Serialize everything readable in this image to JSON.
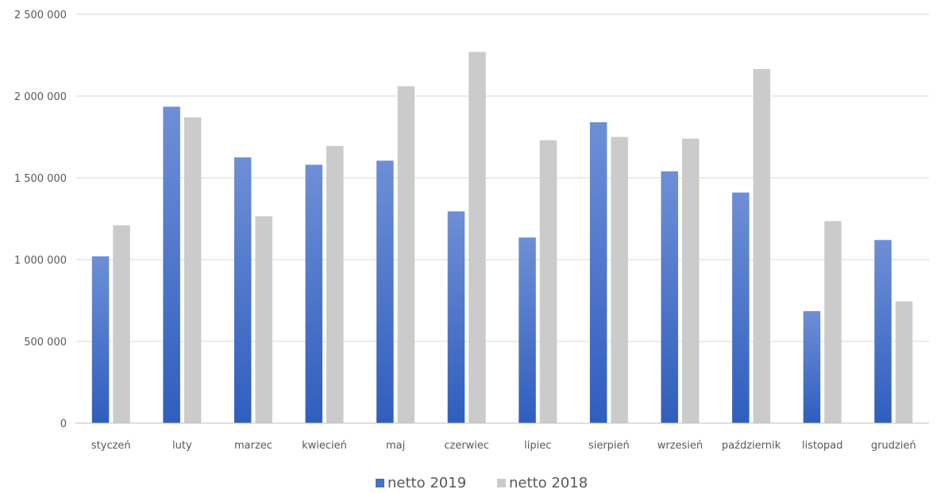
{
  "chart_data": {
    "type": "bar",
    "title": "",
    "xlabel": "",
    "ylabel": "",
    "categories": [
      "styczeń",
      "luty",
      "marzec",
      "kwiecień",
      "maj",
      "czerwiec",
      "lipiec",
      "sierpień",
      "wrzesień",
      "październik",
      "listopad",
      "grudzień"
    ],
    "series": [
      {
        "name": "netto 2019",
        "color": "#4472C4",
        "values": [
          1020000,
          1935000,
          1625000,
          1580000,
          1605000,
          1295000,
          1135000,
          1840000,
          1540000,
          1410000,
          685000,
          1120000
        ]
      },
      {
        "name": "netto 2018",
        "color": "#CCCBCB",
        "values": [
          1210000,
          1870000,
          1265000,
          1695000,
          2060000,
          2270000,
          1730000,
          1750000,
          1740000,
          2165000,
          1235000,
          745000
        ]
      }
    ],
    "ylim": [
      0,
      2500000
    ],
    "yticks": [
      0,
      500000,
      1000000,
      1500000,
      2000000,
      2500000
    ],
    "ytick_labels": [
      "0",
      "500 000",
      "1 000 000",
      "1 500 000",
      "2 000 000",
      "2 500 000"
    ],
    "grid": true,
    "legend_position": "bottom"
  }
}
